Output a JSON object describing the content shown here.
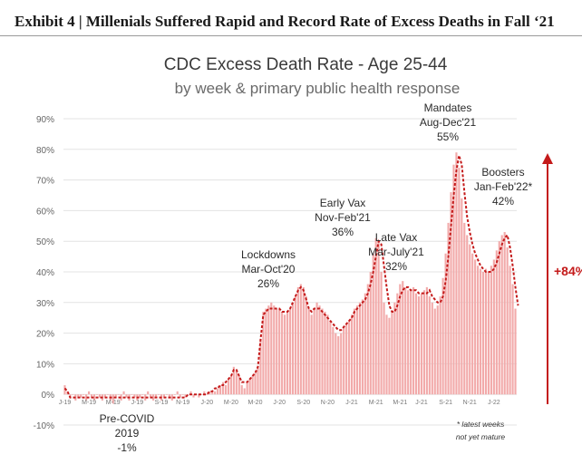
{
  "exhibit_title": "Exhibit 4 | Millenials Suffered Rapid and Record Rate of Excess Deaths in Fall ‘21",
  "colors": {
    "bar": "#f2aaaa",
    "line": "#c41a1a",
    "arrow": "#c41a1a",
    "grid": "#e3e3e3"
  },
  "chart_data": {
    "type": "bar",
    "title": "CDC Excess Death Rate - Age 25-44",
    "subtitle": "by week & primary public health response",
    "ylim": [
      -10,
      90
    ],
    "y_ticks": [
      "-10%",
      "0%",
      "10%",
      "20%",
      "30%",
      "40%",
      "50%",
      "60%",
      "70%",
      "80%",
      "90%"
    ],
    "y_tick_values": [
      -10,
      0,
      10,
      20,
      30,
      40,
      50,
      60,
      70,
      80,
      90
    ],
    "grid": true,
    "x_tick_labels": [
      "J-19",
      "M-19",
      "M-19",
      "J-19",
      "S-19",
      "N-19",
      "J-20",
      "M-20",
      "M-20",
      "J-20",
      "S-20",
      "N-20",
      "J-21",
      "M-21",
      "M-21",
      "J-21",
      "S-21",
      "N-21",
      "J-22"
    ],
    "week_start": "2019-01",
    "week_values": [
      3,
      1,
      -1,
      0,
      -2,
      -1,
      -1,
      0,
      -2,
      1,
      -1,
      -2,
      0,
      -1,
      -2,
      -1,
      0,
      -2,
      -3,
      -1,
      0,
      -2,
      1,
      -1,
      -2,
      0,
      -1,
      -2,
      -1,
      0,
      -2,
      1,
      -1,
      -2,
      -1,
      0,
      -2,
      -1,
      0,
      -1,
      -2,
      0,
      1,
      -1,
      0,
      -1,
      0,
      1,
      -1,
      0,
      -1,
      0,
      1,
      0,
      1,
      1,
      1,
      2,
      3,
      4,
      3,
      5,
      6,
      9,
      8,
      6,
      3,
      2,
      4,
      5,
      6,
      7,
      9,
      18,
      27,
      28,
      29,
      30,
      29,
      28,
      28,
      27,
      26,
      27,
      28,
      30,
      32,
      35,
      36,
      35,
      32,
      28,
      26,
      28,
      30,
      29,
      28,
      27,
      26,
      24,
      22,
      20,
      19,
      20,
      22,
      23,
      24,
      26,
      28,
      29,
      30,
      31,
      33,
      36,
      40,
      46,
      51,
      50,
      40,
      30,
      26,
      25,
      27,
      30,
      33,
      36,
      37,
      35,
      34,
      34,
      35,
      33,
      32,
      33,
      34,
      35,
      32,
      30,
      28,
      29,
      32,
      38,
      46,
      56,
      66,
      75,
      79,
      74,
      64,
      56,
      52,
      49,
      46,
      44,
      42,
      41,
      40,
      41,
      40,
      42,
      44,
      47,
      50,
      52,
      53,
      48,
      42,
      36,
      28
    ],
    "line_values": [
      2,
      1,
      -1,
      -1,
      -1,
      -1,
      -1,
      -1,
      -1,
      -1,
      -1,
      -1,
      -1,
      -1,
      -1,
      -1,
      -1,
      -1,
      -1,
      -1,
      -1,
      -1,
      -1,
      -1,
      -1,
      -1,
      -1,
      -1,
      -1,
      -1,
      -1,
      -1,
      -1,
      -1,
      -1,
      -1,
      -1,
      -1,
      -1,
      -1,
      -1,
      -1,
      -1,
      -1,
      -1,
      -1,
      0,
      0,
      0,
      0,
      0,
      0,
      0,
      0,
      1,
      1,
      2,
      2,
      3,
      3,
      4,
      5,
      6,
      8,
      8,
      6,
      4,
      4,
      4,
      5,
      6,
      7,
      9,
      18,
      26,
      27,
      28,
      28,
      28,
      28,
      28,
      27,
      27,
      27,
      28,
      30,
      32,
      34,
      35,
      34,
      31,
      28,
      27,
      28,
      28,
      28,
      27,
      26,
      25,
      24,
      23,
      22,
      21,
      21,
      22,
      23,
      24,
      25,
      27,
      28,
      29,
      30,
      31,
      33,
      36,
      40,
      45,
      50,
      49,
      42,
      35,
      29,
      27,
      27,
      29,
      32,
      34,
      35,
      35,
      34,
      34,
      34,
      33,
      33,
      33,
      33,
      34,
      32,
      31,
      30,
      30,
      32,
      37,
      45,
      55,
      65,
      73,
      78,
      75,
      66,
      58,
      53,
      49,
      46,
      44,
      42,
      41,
      40,
      40,
      40,
      41,
      43,
      46,
      49,
      51,
      52,
      48,
      42,
      35,
      29
    ],
    "annotations": [
      {
        "lines": [
          "Pre-COVID",
          "2019",
          "-1%"
        ],
        "value": -1
      },
      {
        "lines": [
          "Lockdowns",
          "Mar-Oct'20",
          "26%"
        ],
        "value": 26
      },
      {
        "lines": [
          "Early Vax",
          "Nov-Feb'21",
          "36%"
        ],
        "value": 36
      },
      {
        "lines": [
          "Late Vax",
          "Mar-July'21",
          "32%"
        ],
        "value": 32
      },
      {
        "lines": [
          "Mandates",
          "Aug-Dec'21",
          "55%"
        ],
        "value": 55
      },
      {
        "lines": [
          "Boosters",
          "Jan-Feb'22*",
          "42%"
        ],
        "value": 42
      }
    ],
    "increase_label": "+84%",
    "footnote": [
      "* latest weeks",
      "not yet mature"
    ]
  }
}
